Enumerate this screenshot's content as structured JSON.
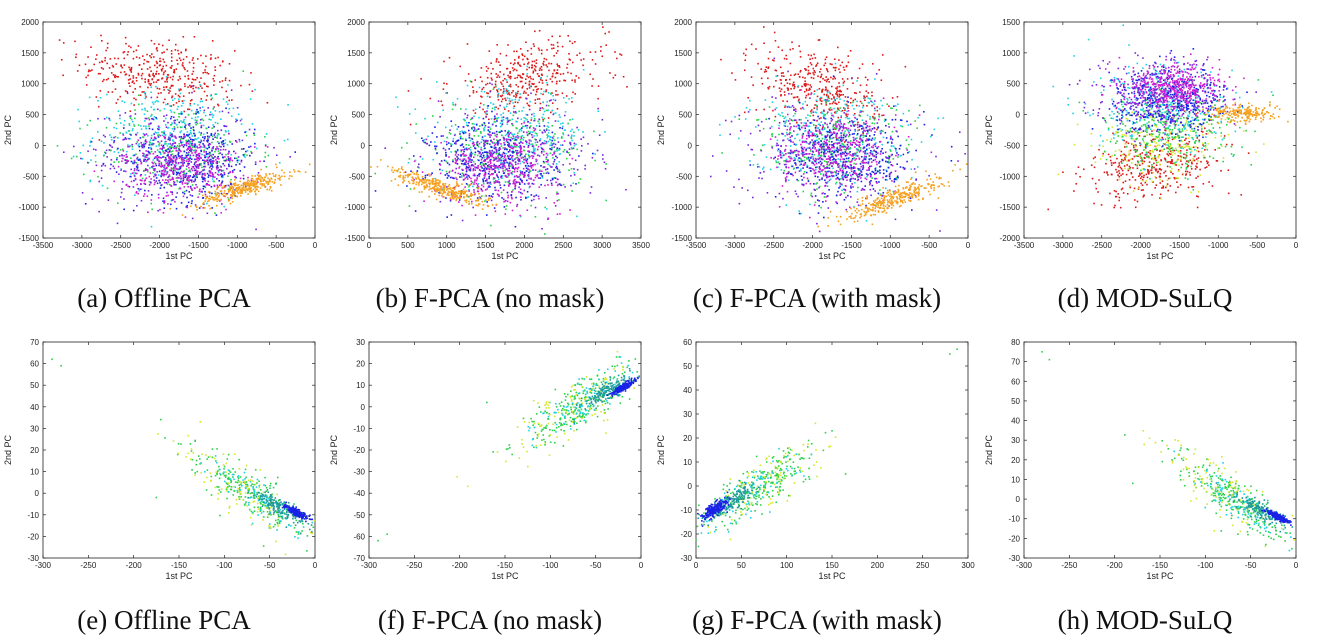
{
  "colors": {
    "red": "#dd1a1a",
    "orange": "#f5a01e",
    "blue": "#1a22e6",
    "magenta": "#d21ed2",
    "purple": "#7a28e0",
    "cyan": "#1ed2e6",
    "green": "#2bd24a",
    "yellow": "#d6e62a",
    "teal": "#1e9a9a"
  },
  "chart_data": [
    {
      "id": "a",
      "type": "scatter",
      "caption": "(a) Offline PCA",
      "xlabel": "1st PC",
      "ylabel": "2nd PC",
      "xlim": [
        -3500,
        0
      ],
      "ylim": [
        -1500,
        2000
      ],
      "xticks": [
        -3500,
        -3000,
        -2500,
        -2000,
        -1500,
        -1000,
        -500,
        0
      ],
      "yticks": [
        -1500,
        -1000,
        -500,
        0,
        500,
        1000,
        1500,
        2000
      ],
      "clusters": [
        {
          "color": "red",
          "n": 380,
          "cx": -2000,
          "cy": 1150,
          "sx": 500,
          "sy": 300,
          "rho": -0.3
        },
        {
          "color": "cyan",
          "n": 380,
          "cx": -1850,
          "cy": 150,
          "sx": 500,
          "sy": 380,
          "rho": 0
        },
        {
          "color": "green",
          "n": 240,
          "cx": -1750,
          "cy": -100,
          "sx": 500,
          "sy": 380,
          "rho": 0
        },
        {
          "color": "blue",
          "n": 420,
          "cx": -1600,
          "cy": -250,
          "sx": 420,
          "sy": 330,
          "rho": 0
        },
        {
          "color": "purple",
          "n": 280,
          "cx": -1900,
          "cy": -150,
          "sx": 550,
          "sy": 420,
          "rho": 0
        },
        {
          "color": "magenta",
          "n": 380,
          "cx": -1700,
          "cy": -350,
          "sx": 380,
          "sy": 280,
          "rho": 0
        },
        {
          "color": "orange",
          "n": 320,
          "cx": -900,
          "cy": -680,
          "sx": 300,
          "sy": 140,
          "rho": 0.85
        }
      ]
    },
    {
      "id": "b",
      "type": "scatter",
      "caption": "(b) F-PCA (no mask)",
      "xlabel": "1st PC",
      "ylabel": "2nd PC",
      "xlim": [
        0,
        3500
      ],
      "ylim": [
        -1500,
        2000
      ],
      "xticks": [
        0,
        500,
        1000,
        1500,
        2000,
        2500,
        3000,
        3500
      ],
      "yticks": [
        -1500,
        -1000,
        -500,
        0,
        500,
        1000,
        1500,
        2000
      ],
      "clusters": [
        {
          "color": "red",
          "n": 380,
          "cx": 2050,
          "cy": 1100,
          "sx": 500,
          "sy": 300,
          "rho": 0.3
        },
        {
          "color": "cyan",
          "n": 380,
          "cx": 1850,
          "cy": 150,
          "sx": 500,
          "sy": 380,
          "rho": 0
        },
        {
          "color": "green",
          "n": 240,
          "cx": 1750,
          "cy": -100,
          "sx": 500,
          "sy": 380,
          "rho": 0
        },
        {
          "color": "blue",
          "n": 420,
          "cx": 1600,
          "cy": -250,
          "sx": 420,
          "sy": 330,
          "rho": 0
        },
        {
          "color": "purple",
          "n": 280,
          "cx": 1900,
          "cy": -150,
          "sx": 550,
          "sy": 420,
          "rho": 0
        },
        {
          "color": "magenta",
          "n": 380,
          "cx": 1700,
          "cy": -350,
          "sx": 380,
          "sy": 280,
          "rho": 0
        },
        {
          "color": "orange",
          "n": 320,
          "cx": 900,
          "cy": -680,
          "sx": 300,
          "sy": 140,
          "rho": -0.85
        }
      ]
    },
    {
      "id": "c",
      "type": "scatter",
      "caption": "(c) F-PCA (with mask)",
      "xlabel": "1st PC",
      "ylabel": "2nd PC",
      "xlim": [
        -3500,
        0
      ],
      "ylim": [
        -1500,
        2000
      ],
      "xticks": [
        -3500,
        -3000,
        -2500,
        -2000,
        -1500,
        -1000,
        -500,
        0
      ],
      "yticks": [
        -1500,
        -1000,
        -500,
        0,
        500,
        1000,
        1500,
        2000
      ],
      "clusters": [
        {
          "color": "red",
          "n": 380,
          "cx": -1900,
          "cy": 950,
          "sx": 400,
          "sy": 350,
          "rho": -0.3
        },
        {
          "color": "cyan",
          "n": 380,
          "cx": -1800,
          "cy": 150,
          "sx": 500,
          "sy": 400,
          "rho": 0
        },
        {
          "color": "green",
          "n": 240,
          "cx": -1700,
          "cy": -50,
          "sx": 500,
          "sy": 400,
          "rho": 0
        },
        {
          "color": "blue",
          "n": 420,
          "cx": -1550,
          "cy": -200,
          "sx": 420,
          "sy": 350,
          "rho": 0
        },
        {
          "color": "purple",
          "n": 280,
          "cx": -1850,
          "cy": -100,
          "sx": 550,
          "sy": 450,
          "rho": 0
        },
        {
          "color": "magenta",
          "n": 380,
          "cx": -1700,
          "cy": -150,
          "sx": 380,
          "sy": 330,
          "rho": 0
        },
        {
          "color": "orange",
          "n": 320,
          "cx": -950,
          "cy": -850,
          "sx": 300,
          "sy": 170,
          "rho": 0.85
        }
      ]
    },
    {
      "id": "d",
      "type": "scatter",
      "caption": "(d) MOD-SuLQ",
      "xlabel": "1st PC",
      "ylabel": "2nd PC",
      "xlim": [
        -3500,
        0
      ],
      "ylim": [
        -2000,
        1500
      ],
      "xticks": [
        -3500,
        -3000,
        -2500,
        -2000,
        -1500,
        -1000,
        -500,
        0
      ],
      "yticks": [
        -2000,
        -1500,
        -1000,
        -500,
        0,
        500,
        1000,
        1500
      ],
      "clusters": [
        {
          "color": "red",
          "n": 380,
          "cx": -1800,
          "cy": -800,
          "sx": 450,
          "sy": 300,
          "rho": 0.3
        },
        {
          "color": "yellow",
          "n": 220,
          "cx": -1700,
          "cy": -500,
          "sx": 420,
          "sy": 300,
          "rho": 0
        },
        {
          "color": "green",
          "n": 320,
          "cx": -1650,
          "cy": -250,
          "sx": 420,
          "sy": 330,
          "rho": 0
        },
        {
          "color": "cyan",
          "n": 320,
          "cx": -1700,
          "cy": 100,
          "sx": 450,
          "sy": 350,
          "rho": 0
        },
        {
          "color": "blue",
          "n": 420,
          "cx": -1600,
          "cy": 250,
          "sx": 350,
          "sy": 250,
          "rho": 0
        },
        {
          "color": "purple",
          "n": 280,
          "cx": -1800,
          "cy": 300,
          "sx": 450,
          "sy": 300,
          "rho": 0
        },
        {
          "color": "magenta",
          "n": 420,
          "cx": -1550,
          "cy": 450,
          "sx": 300,
          "sy": 200,
          "rho": 0
        },
        {
          "color": "orange",
          "n": 200,
          "cx": -650,
          "cy": 20,
          "sx": 220,
          "sy": 70,
          "rho": 0
        }
      ]
    },
    {
      "id": "e",
      "type": "scatter",
      "caption": "(e) Offline PCA",
      "xlabel": "1st PC",
      "ylabel": "2nd PC",
      "xlim": [
        -300,
        0
      ],
      "ylim": [
        -30,
        70
      ],
      "xticks": [
        -300,
        -250,
        -200,
        -150,
        -100,
        -50,
        0
      ],
      "yticks": [
        -30,
        -20,
        -10,
        0,
        10,
        20,
        30,
        40,
        50,
        60,
        70
      ],
      "clusters": [
        {
          "color": "green",
          "n": 240,
          "cx": -70,
          "cy": 0,
          "sx": 32,
          "sy": 10,
          "rho": -0.85
        },
        {
          "color": "yellow",
          "n": 110,
          "cx": -80,
          "cy": 2,
          "sx": 35,
          "sy": 11,
          "rho": -0.8
        },
        {
          "color": "cyan",
          "n": 90,
          "cx": -60,
          "cy": -3,
          "sx": 28,
          "sy": 9,
          "rho": -0.85
        },
        {
          "color": "teal",
          "n": 170,
          "cx": -38,
          "cy": -7,
          "sx": 14,
          "sy": 4,
          "rho": -0.85
        },
        {
          "color": "blue",
          "n": 230,
          "cx": -20,
          "cy": -9,
          "sx": 6,
          "sy": 1.5,
          "rho": -0.85
        }
      ],
      "outliers": [
        [
          -290,
          62
        ],
        [
          -280,
          59
        ],
        [
          -175,
          -2
        ]
      ]
    },
    {
      "id": "f",
      "type": "scatter",
      "caption": "(f) F-PCA (no mask)",
      "xlabel": "1st PC",
      "ylabel": "2nd PC",
      "xlim": [
        -300,
        0
      ],
      "ylim": [
        -70,
        30
      ],
      "xticks": [
        -300,
        -250,
        -200,
        -150,
        -100,
        -50,
        0
      ],
      "yticks": [
        -70,
        -60,
        -50,
        -40,
        -30,
        -20,
        -10,
        0,
        10,
        20,
        30
      ],
      "clusters": [
        {
          "color": "green",
          "n": 240,
          "cx": -70,
          "cy": 0,
          "sx": 32,
          "sy": 10,
          "rho": 0.85
        },
        {
          "color": "yellow",
          "n": 110,
          "cx": -80,
          "cy": -2,
          "sx": 35,
          "sy": 11,
          "rho": 0.8
        },
        {
          "color": "cyan",
          "n": 90,
          "cx": -60,
          "cy": 3,
          "sx": 28,
          "sy": 9,
          "rho": 0.85
        },
        {
          "color": "teal",
          "n": 170,
          "cx": -38,
          "cy": 7,
          "sx": 14,
          "sy": 4,
          "rho": 0.85
        },
        {
          "color": "blue",
          "n": 230,
          "cx": -20,
          "cy": 9,
          "sx": 6,
          "sy": 1.5,
          "rho": 0.85
        }
      ],
      "outliers": [
        [
          -290,
          -62
        ],
        [
          -280,
          -59
        ],
        [
          -170,
          2
        ]
      ]
    },
    {
      "id": "g",
      "type": "scatter",
      "caption": "(g) F-PCA (with mask)",
      "xlabel": "1st PC",
      "ylabel": "2nd PC",
      "xlim": [
        0,
        300
      ],
      "ylim": [
        -30,
        60
      ],
      "xticks": [
        0,
        50,
        100,
        150,
        200,
        250,
        300
      ],
      "yticks": [
        -30,
        -20,
        -10,
        0,
        10,
        20,
        30,
        40,
        50,
        60
      ],
      "clusters": [
        {
          "color": "green",
          "n": 240,
          "cx": 70,
          "cy": 0,
          "sx": 32,
          "sy": 9,
          "rho": 0.85
        },
        {
          "color": "yellow",
          "n": 110,
          "cx": 80,
          "cy": 2,
          "sx": 35,
          "sy": 10,
          "rho": 0.8
        },
        {
          "color": "cyan",
          "n": 90,
          "cx": 60,
          "cy": -3,
          "sx": 28,
          "sy": 8,
          "rho": 0.85
        },
        {
          "color": "teal",
          "n": 170,
          "cx": 38,
          "cy": -7,
          "sx": 14,
          "sy": 4,
          "rho": 0.85
        },
        {
          "color": "blue",
          "n": 230,
          "cx": 20,
          "cy": -10,
          "sx": 7,
          "sy": 2,
          "rho": 0.7
        }
      ],
      "outliers": [
        [
          280,
          55
        ],
        [
          288,
          57
        ],
        [
          165,
          5
        ],
        [
          150,
          23
        ]
      ]
    },
    {
      "id": "h",
      "type": "scatter",
      "caption": "(h) MOD-SuLQ",
      "xlabel": "1st PC",
      "ylabel": "2nd PC",
      "xlim": [
        -300,
        0
      ],
      "ylim": [
        -30,
        80
      ],
      "xticks": [
        -300,
        -250,
        -200,
        -150,
        -100,
        -50,
        0
      ],
      "yticks": [
        -30,
        -20,
        -10,
        0,
        10,
        20,
        30,
        40,
        50,
        60,
        70,
        80
      ],
      "clusters": [
        {
          "color": "green",
          "n": 240,
          "cx": -70,
          "cy": 0,
          "sx": 32,
          "sy": 11,
          "rho": -0.85
        },
        {
          "color": "yellow",
          "n": 110,
          "cx": -80,
          "cy": 3,
          "sx": 35,
          "sy": 12,
          "rho": -0.8
        },
        {
          "color": "cyan",
          "n": 90,
          "cx": -60,
          "cy": -3,
          "sx": 28,
          "sy": 10,
          "rho": -0.85
        },
        {
          "color": "teal",
          "n": 170,
          "cx": -38,
          "cy": -6,
          "sx": 14,
          "sy": 4,
          "rho": -0.85
        },
        {
          "color": "blue",
          "n": 230,
          "cx": -20,
          "cy": -9,
          "sx": 6,
          "sy": 1.5,
          "rho": -0.85
        }
      ],
      "outliers": [
        [
          -280,
          75
        ],
        [
          -272,
          71
        ],
        [
          -180,
          8
        ]
      ]
    }
  ]
}
